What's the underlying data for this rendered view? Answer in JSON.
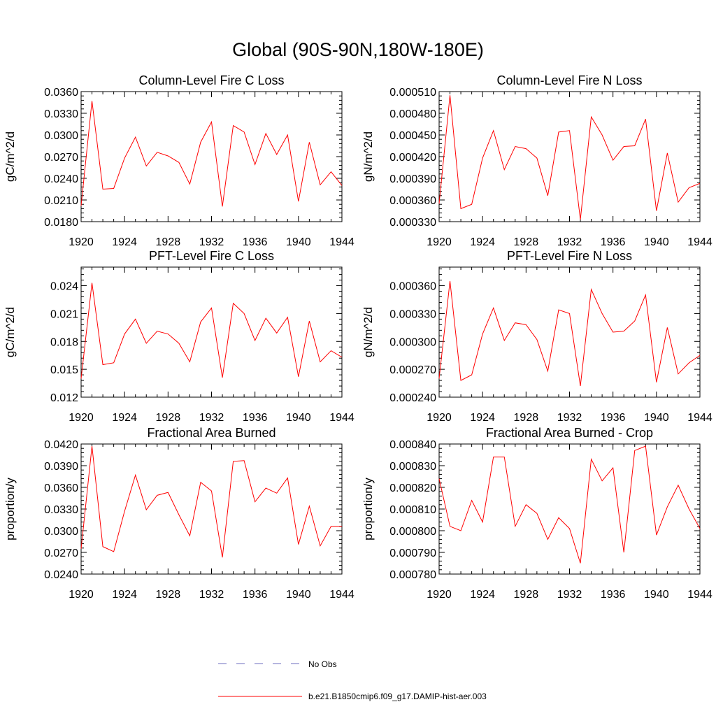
{
  "title": "Global (90S-90N,180W-180E)",
  "legend": [
    {
      "label": "No Obs",
      "color": "#6d6dbf",
      "style": "dashed"
    },
    {
      "label": "b.e21.B1850cmip6.f09_g17.DAMIP-hist-aer.003",
      "color": "#ff0000",
      "style": "solid"
    }
  ],
  "chart_data": [
    {
      "type": "line",
      "title": "Column-Level Fire C Loss",
      "ylabel": "gC/m^2/d",
      "xlim": [
        1920,
        1944
      ],
      "ylim": [
        0.018,
        0.036
      ],
      "xticks": [
        1920,
        1924,
        1928,
        1932,
        1936,
        1940,
        1944
      ],
      "xtick_labels": [
        "1920",
        "1924",
        "1928",
        "1932",
        "1936",
        "1940",
        "1944"
      ],
      "yticks": [
        0.018,
        0.021,
        0.024,
        0.027,
        0.03,
        0.033,
        0.036
      ],
      "ytick_labels": [
        "0.0180",
        "0.0210",
        "0.0240",
        "0.0270",
        "0.0300",
        "0.0330",
        "0.0360"
      ],
      "color": "#ff0000",
      "series": [
        {
          "x": [
            1920,
            1921,
            1922,
            1923,
            1924,
            1925,
            1926,
            1927,
            1928,
            1929,
            1930,
            1931,
            1932,
            1933,
            1934,
            1935,
            1936,
            1937,
            1938,
            1939,
            1940,
            1941,
            1942,
            1943,
            1944
          ],
          "values": [
            0.0202,
            0.0347,
            0.0225,
            0.0226,
            0.0268,
            0.0297,
            0.0257,
            0.0276,
            0.0271,
            0.0262,
            0.0232,
            0.029,
            0.0318,
            0.0201,
            0.0313,
            0.0304,
            0.0259,
            0.0302,
            0.0273,
            0.03,
            0.0208,
            0.029,
            0.0231,
            0.0249,
            0.023
          ]
        }
      ]
    },
    {
      "type": "line",
      "title": "Column-Level Fire N Loss",
      "ylabel": "gN/m^2/d",
      "xlim": [
        1920,
        1944
      ],
      "ylim": [
        0.00033,
        0.00051
      ],
      "xticks": [
        1920,
        1924,
        1928,
        1932,
        1936,
        1940,
        1944
      ],
      "xtick_labels": [
        "1920",
        "1924",
        "1928",
        "1932",
        "1936",
        "1940",
        "1944"
      ],
      "yticks": [
        0.00033,
        0.00036,
        0.00039,
        0.00042,
        0.00045,
        0.00048,
        0.00051
      ],
      "ytick_labels": [
        "0.000330",
        "0.000360",
        "0.000390",
        "0.000420",
        "0.000450",
        "0.000480",
        "0.000510"
      ],
      "color": "#ff0000",
      "series": [
        {
          "x": [
            1920,
            1921,
            1922,
            1923,
            1924,
            1925,
            1926,
            1927,
            1928,
            1929,
            1930,
            1931,
            1932,
            1933,
            1934,
            1935,
            1936,
            1937,
            1938,
            1939,
            1940,
            1941,
            1942,
            1943,
            1944
          ],
          "values": [
            0.000355,
            0.000505,
            0.000348,
            0.000354,
            0.000418,
            0.000456,
            0.000402,
            0.000434,
            0.000431,
            0.000418,
            0.000366,
            0.000454,
            0.000456,
            0.000333,
            0.000475,
            0.00045,
            0.000415,
            0.000434,
            0.000435,
            0.000472,
            0.000345,
            0.000425,
            0.000357,
            0.000377,
            0.000383
          ]
        }
      ]
    },
    {
      "type": "line",
      "title": "PFT-Level Fire C Loss",
      "ylabel": "gC/m^2/d",
      "xlim": [
        1920,
        1944
      ],
      "ylim": [
        0.012,
        0.026
      ],
      "xticks": [
        1920,
        1924,
        1928,
        1932,
        1936,
        1940,
        1944
      ],
      "xtick_labels": [
        "1920",
        "1924",
        "1928",
        "1932",
        "1936",
        "1940",
        "1944"
      ],
      "yticks": [
        0.012,
        0.015,
        0.018,
        0.021,
        0.024
      ],
      "ytick_labels": [
        "0.012",
        "0.015",
        "0.018",
        "0.021",
        "0.024"
      ],
      "color": "#ff0000",
      "series": [
        {
          "x": [
            1920,
            1921,
            1922,
            1923,
            1924,
            1925,
            1926,
            1927,
            1928,
            1929,
            1930,
            1931,
            1932,
            1933,
            1934,
            1935,
            1936,
            1937,
            1938,
            1939,
            1940,
            1941,
            1942,
            1943,
            1944
          ],
          "values": [
            0.014,
            0.0243,
            0.0155,
            0.0157,
            0.0188,
            0.0204,
            0.0178,
            0.0191,
            0.0188,
            0.0178,
            0.0158,
            0.0201,
            0.0216,
            0.0141,
            0.0221,
            0.021,
            0.0181,
            0.0205,
            0.0189,
            0.0206,
            0.0142,
            0.0202,
            0.0158,
            0.017,
            0.0163
          ]
        }
      ]
    },
    {
      "type": "line",
      "title": "PFT-Level Fire N Loss",
      "ylabel": "gN/m^2/d",
      "xlim": [
        1920,
        1944
      ],
      "ylim": [
        0.00024,
        0.00038
      ],
      "xticks": [
        1920,
        1924,
        1928,
        1932,
        1936,
        1940,
        1944
      ],
      "xtick_labels": [
        "1920",
        "1924",
        "1928",
        "1932",
        "1936",
        "1940",
        "1944"
      ],
      "yticks": [
        0.00024,
        0.00027,
        0.0003,
        0.00033,
        0.00036
      ],
      "ytick_labels": [
        "0.000240",
        "0.000270",
        "0.000300",
        "0.000330",
        "0.000360"
      ],
      "color": "#ff0000",
      "series": [
        {
          "x": [
            1920,
            1921,
            1922,
            1923,
            1924,
            1925,
            1926,
            1927,
            1928,
            1929,
            1930,
            1931,
            1932,
            1933,
            1934,
            1935,
            1936,
            1937,
            1938,
            1939,
            1940,
            1941,
            1942,
            1943,
            1944
          ],
          "values": [
            0.00026,
            0.000365,
            0.000258,
            0.000264,
            0.000308,
            0.000336,
            0.000301,
            0.00032,
            0.000318,
            0.000302,
            0.000268,
            0.000334,
            0.00033,
            0.000252,
            0.000356,
            0.00033,
            0.00031,
            0.000311,
            0.000322,
            0.00035,
            0.000256,
            0.000315,
            0.000265,
            0.000277,
            0.000285
          ]
        }
      ]
    },
    {
      "type": "line",
      "title": "Fractional Area Burned",
      "ylabel": "proportion/y",
      "xlim": [
        1920,
        1944
      ],
      "ylim": [
        0.024,
        0.042
      ],
      "xticks": [
        1920,
        1924,
        1928,
        1932,
        1936,
        1940,
        1944
      ],
      "xtick_labels": [
        "1920",
        "1924",
        "1928",
        "1932",
        "1936",
        "1940",
        "1944"
      ],
      "yticks": [
        0.024,
        0.027,
        0.03,
        0.033,
        0.036,
        0.039,
        0.042
      ],
      "ytick_labels": [
        "0.0240",
        "0.0270",
        "0.0300",
        "0.0330",
        "0.0360",
        "0.0390",
        "0.0420"
      ],
      "color": "#ff0000",
      "series": [
        {
          "x": [
            1920,
            1921,
            1922,
            1923,
            1924,
            1925,
            1926,
            1927,
            1928,
            1929,
            1930,
            1931,
            1932,
            1933,
            1934,
            1935,
            1936,
            1937,
            1938,
            1939,
            1940,
            1941,
            1942,
            1943,
            1944
          ],
          "values": [
            0.0275,
            0.0417,
            0.0278,
            0.0271,
            0.0327,
            0.0377,
            0.0329,
            0.0349,
            0.0353,
            0.0322,
            0.0293,
            0.0367,
            0.0355,
            0.0263,
            0.0396,
            0.0397,
            0.034,
            0.0359,
            0.0352,
            0.0373,
            0.0281,
            0.0334,
            0.0279,
            0.0306,
            0.0306
          ]
        }
      ]
    },
    {
      "type": "line",
      "title": "Fractional Area Burned - Crop",
      "ylabel": "proportion/y",
      "xlim": [
        1920,
        1944
      ],
      "ylim": [
        0.00078,
        0.00084
      ],
      "xticks": [
        1920,
        1924,
        1928,
        1932,
        1936,
        1940,
        1944
      ],
      "xtick_labels": [
        "1920",
        "1924",
        "1928",
        "1932",
        "1936",
        "1940",
        "1944"
      ],
      "yticks": [
        0.00078,
        0.00079,
        0.0008,
        0.00081,
        0.00082,
        0.00083,
        0.00084
      ],
      "ytick_labels": [
        "0.000780",
        "0.000790",
        "0.000800",
        "0.000810",
        "0.000820",
        "0.000830",
        "0.000840"
      ],
      "color": "#ff0000",
      "series": [
        {
          "x": [
            1920,
            1921,
            1922,
            1923,
            1924,
            1925,
            1926,
            1927,
            1928,
            1929,
            1930,
            1931,
            1932,
            1933,
            1934,
            1935,
            1936,
            1937,
            1938,
            1939,
            1940,
            1941,
            1942,
            1943,
            1944
          ],
          "values": [
            0.000824,
            0.000802,
            0.0008,
            0.000814,
            0.000804,
            0.000834,
            0.000834,
            0.000802,
            0.000812,
            0.000808,
            0.000796,
            0.000806,
            0.000801,
            0.000785,
            0.000833,
            0.000823,
            0.000829,
            0.00079,
            0.000837,
            0.000839,
            0.000798,
            0.000811,
            0.000821,
            0.00081,
            0.000801
          ]
        }
      ]
    }
  ]
}
